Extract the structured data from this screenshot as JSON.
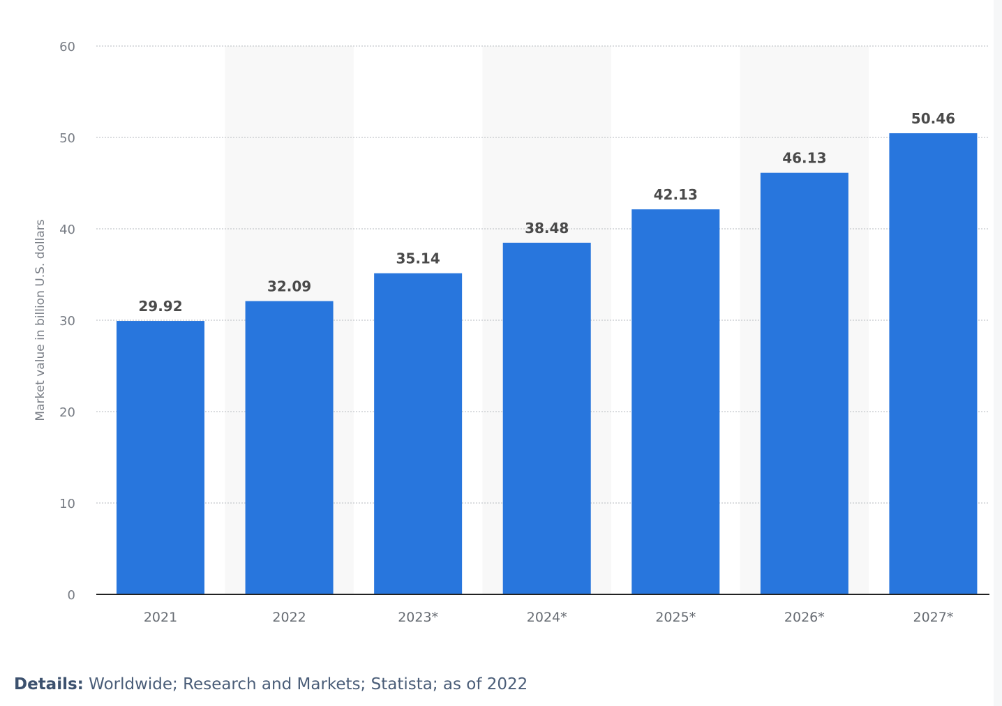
{
  "chart_data": {
    "type": "bar",
    "categories": [
      "2021",
      "2022",
      "2023*",
      "2024*",
      "2025*",
      "2026*",
      "2027*"
    ],
    "values": [
      29.92,
      32.09,
      35.14,
      38.48,
      42.13,
      46.13,
      50.46
    ],
    "value_labels": [
      "29.92",
      "32.09",
      "35.14",
      "38.48",
      "42.13",
      "46.13",
      "50.46"
    ],
    "title": "",
    "xlabel": "",
    "ylabel": "Market value in billion U.S. dollars",
    "ylim": [
      0,
      60
    ],
    "yticks": [
      "0",
      "10",
      "20",
      "30",
      "40",
      "50",
      "60"
    ],
    "grid": true,
    "bar_color": "#2876dd",
    "alternate_band_color": "#f8f8f8"
  },
  "details": {
    "label": "Details:",
    "text": " Worldwide; Research and Markets; Statista; as of 2022"
  }
}
